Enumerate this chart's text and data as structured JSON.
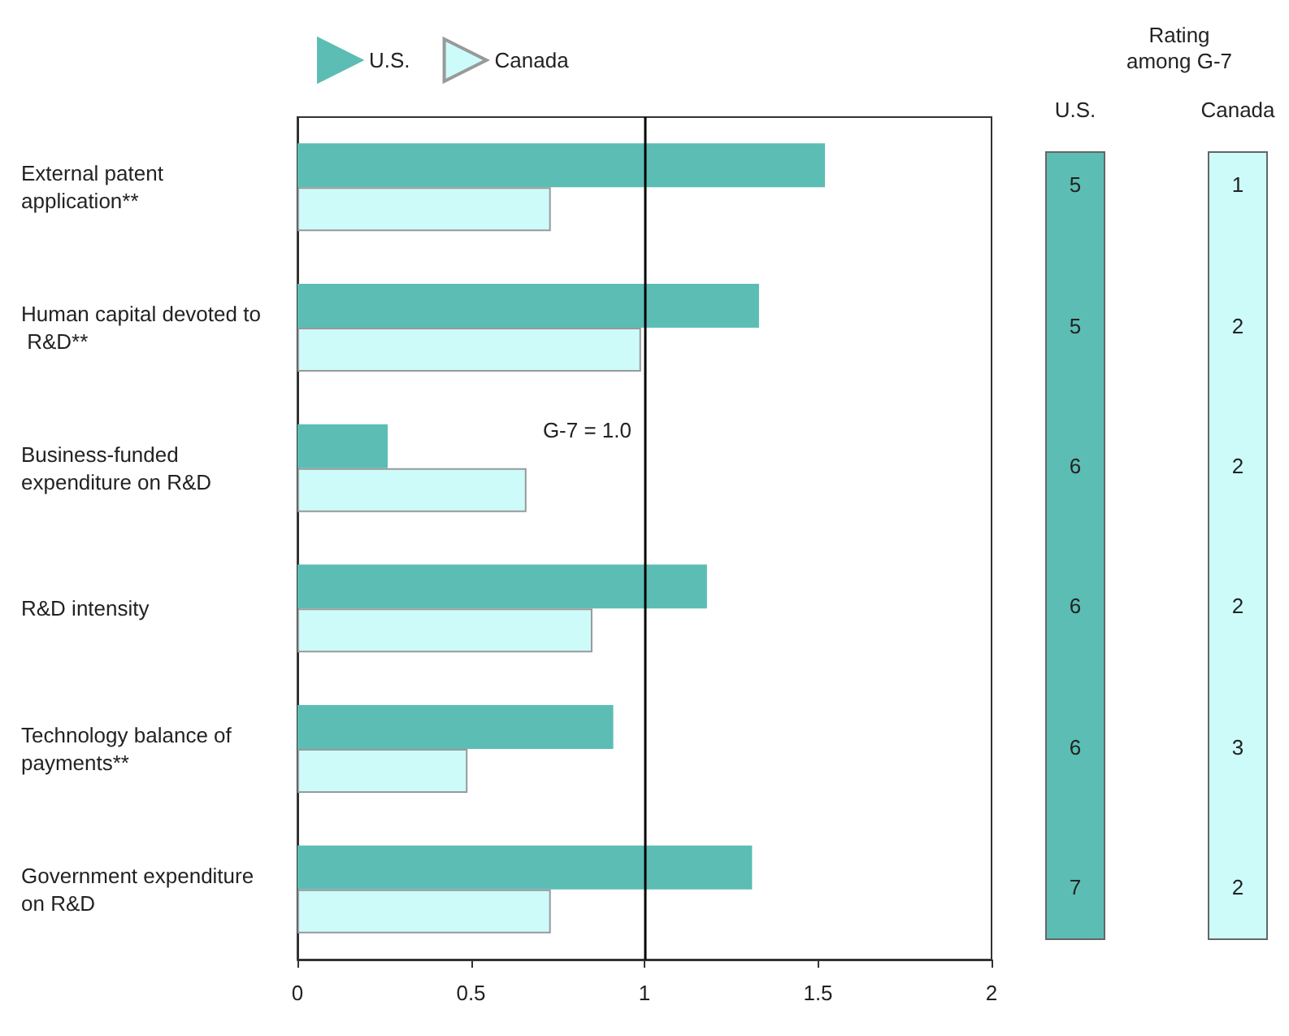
{
  "chart_data": [
    {
      "type": "bar",
      "orientation": "horizontal",
      "categories": [
        "External patent application**",
        "Human capital devoted to R&D**",
        "Business-funded expenditure on R&D",
        "R&D intensity",
        "Technology balance of payments**",
        "Government expenditure on R&D"
      ],
      "series": [
        {
          "name": "U.S.",
          "color": "#5cbdb4",
          "values": [
            1.52,
            1.33,
            0.26,
            1.18,
            0.91,
            1.31
          ]
        },
        {
          "name": "Canada",
          "color": "#ccfbfa",
          "values": [
            0.73,
            0.99,
            0.66,
            0.85,
            0.49,
            0.73
          ]
        }
      ],
      "xlim": [
        0,
        2
      ],
      "xticks": [
        0,
        0.5,
        1,
        1.5,
        2
      ],
      "grid": false,
      "legend": "top",
      "ref_lines": [
        {
          "axis": "x",
          "value": 1,
          "label": "G-7 = 1.0"
        }
      ]
    },
    {
      "type": "other",
      "title": "Rating among G-7",
      "annotations": [
        "U.S.",
        "5",
        "5",
        "6",
        "6",
        "6",
        "7",
        "Canada",
        "1",
        "2",
        "2",
        "2",
        "3",
        "2"
      ]
    }
  ]
}
